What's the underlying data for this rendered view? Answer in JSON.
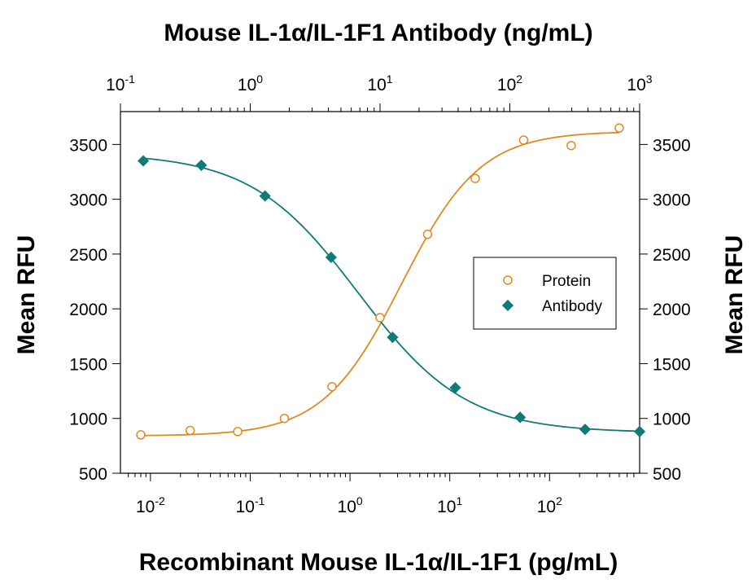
{
  "chart_data": {
    "type": "scatter",
    "title": "Mouse IL-1α/IL-1F1 Antibody (ng/mL)",
    "xlabel": "Recombinant Mouse IL-1α/IL-1F1 (pg/mL)",
    "ylabel_left": "Mean RFU",
    "ylabel_right": "Mean RFU",
    "x_scale": "log",
    "xlim": [
      0.005,
      800
    ],
    "ylim": [
      500,
      3800
    ],
    "yticks": [
      500,
      1000,
      1500,
      2000,
      2500,
      3000,
      3500
    ],
    "bottom_ticks": [
      {
        "value": 0.01,
        "base": "10",
        "exp": "-2"
      },
      {
        "value": 0.1,
        "base": "10",
        "exp": "-1"
      },
      {
        "value": 1,
        "base": "10",
        "exp": "0"
      },
      {
        "value": 10,
        "base": "10",
        "exp": "1"
      },
      {
        "value": 100,
        "base": "10",
        "exp": "2"
      }
    ],
    "top_axis": {
      "scale": "log",
      "xlim": [
        0.1,
        1000
      ],
      "ticks": [
        {
          "value": 0.1,
          "base": "10",
          "exp": "-1"
        },
        {
          "value": 1,
          "base": "10",
          "exp": "0"
        },
        {
          "value": 10,
          "base": "10",
          "exp": "1"
        },
        {
          "value": 100,
          "base": "10",
          "exp": "2"
        },
        {
          "value": 1000,
          "base": "10",
          "exp": "3"
        }
      ]
    },
    "legend_position": "center-right",
    "series": [
      {
        "name": "Protein",
        "axis": "bottom",
        "marker": "open-circle",
        "color": "#e08a1e",
        "x": [
          0.008,
          0.025,
          0.075,
          0.22,
          0.66,
          2.0,
          6.0,
          18,
          55,
          165,
          500
        ],
        "y": [
          850,
          890,
          880,
          1000,
          1290,
          1920,
          2680,
          3190,
          3540,
          3490,
          3650
        ],
        "fit": {
          "bottom": 840,
          "top": 3620,
          "ec50": 3.3,
          "hill": 1.1
        }
      },
      {
        "name": "Antibody",
        "axis": "top",
        "marker": "filled-diamond",
        "color": "#0f7a78",
        "x": [
          0.15,
          0.42,
          1.3,
          4.2,
          12.5,
          38,
          120,
          380,
          1000
        ],
        "y": [
          3350,
          3310,
          3030,
          2470,
          1740,
          1280,
          1010,
          900,
          880
        ],
        "fit": {
          "bottom": 870,
          "top": 3420,
          "ec50": 6.8,
          "hill": 1.05
        }
      }
    ]
  }
}
